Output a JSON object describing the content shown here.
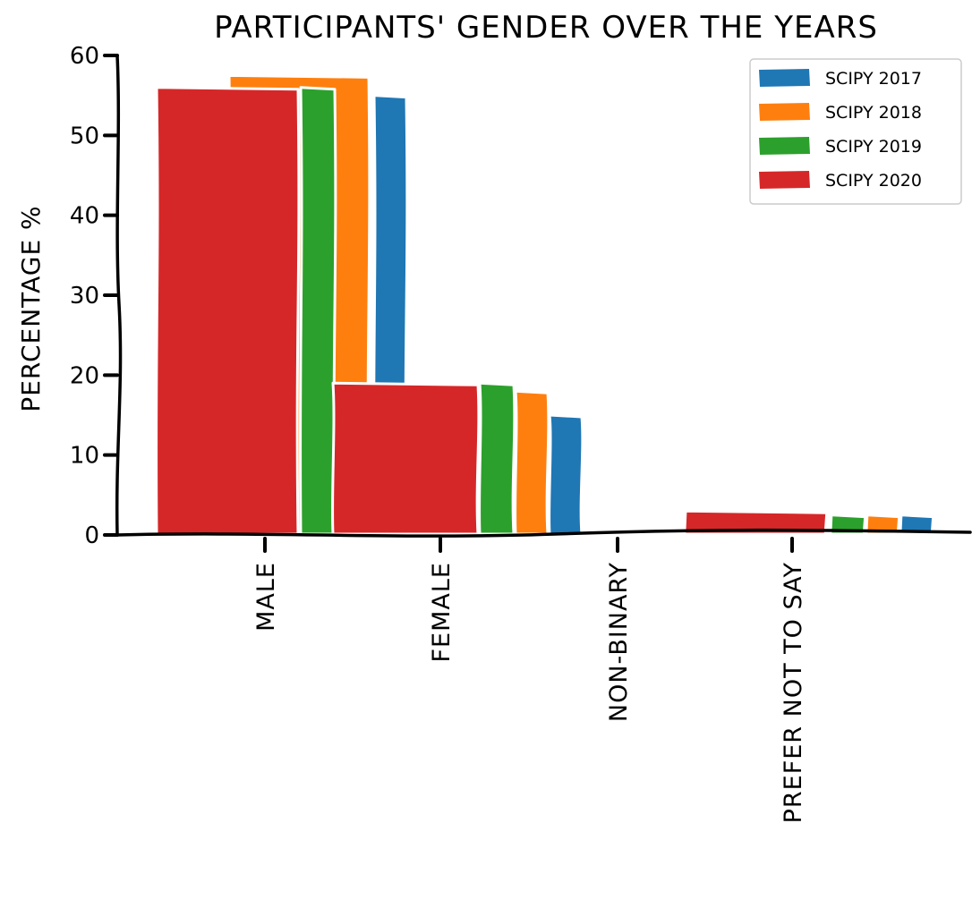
{
  "chart_data": {
    "type": "bar",
    "title": "PARTICIPANTS' GENDER OVER THE YEARS",
    "xlabel": "",
    "ylabel": "PERCENTAGE %",
    "ylim": [
      0,
      60
    ],
    "yticks": [
      0,
      10,
      20,
      30,
      40,
      50,
      60
    ],
    "categories": [
      "MALE",
      "FEMALE",
      "NON-BINARY",
      "PREFER NOT TO SAY"
    ],
    "series": [
      {
        "name": "SCIPY 2017",
        "color": "#1f77b4",
        "values": [
          55,
          15,
          0,
          2.5
        ]
      },
      {
        "name": "SCIPY 2018",
        "color": "#ff7f0e",
        "values": [
          57.5,
          18,
          0,
          2.5
        ]
      },
      {
        "name": "SCIPY 2019",
        "color": "#2ca02c",
        "values": [
          56,
          19,
          0,
          2.5
        ]
      },
      {
        "name": "SCIPY 2020",
        "color": "#d62728",
        "values": [
          56,
          19,
          0,
          3
        ]
      }
    ],
    "legend": "top-right",
    "grid": false,
    "style": "xkcd"
  }
}
